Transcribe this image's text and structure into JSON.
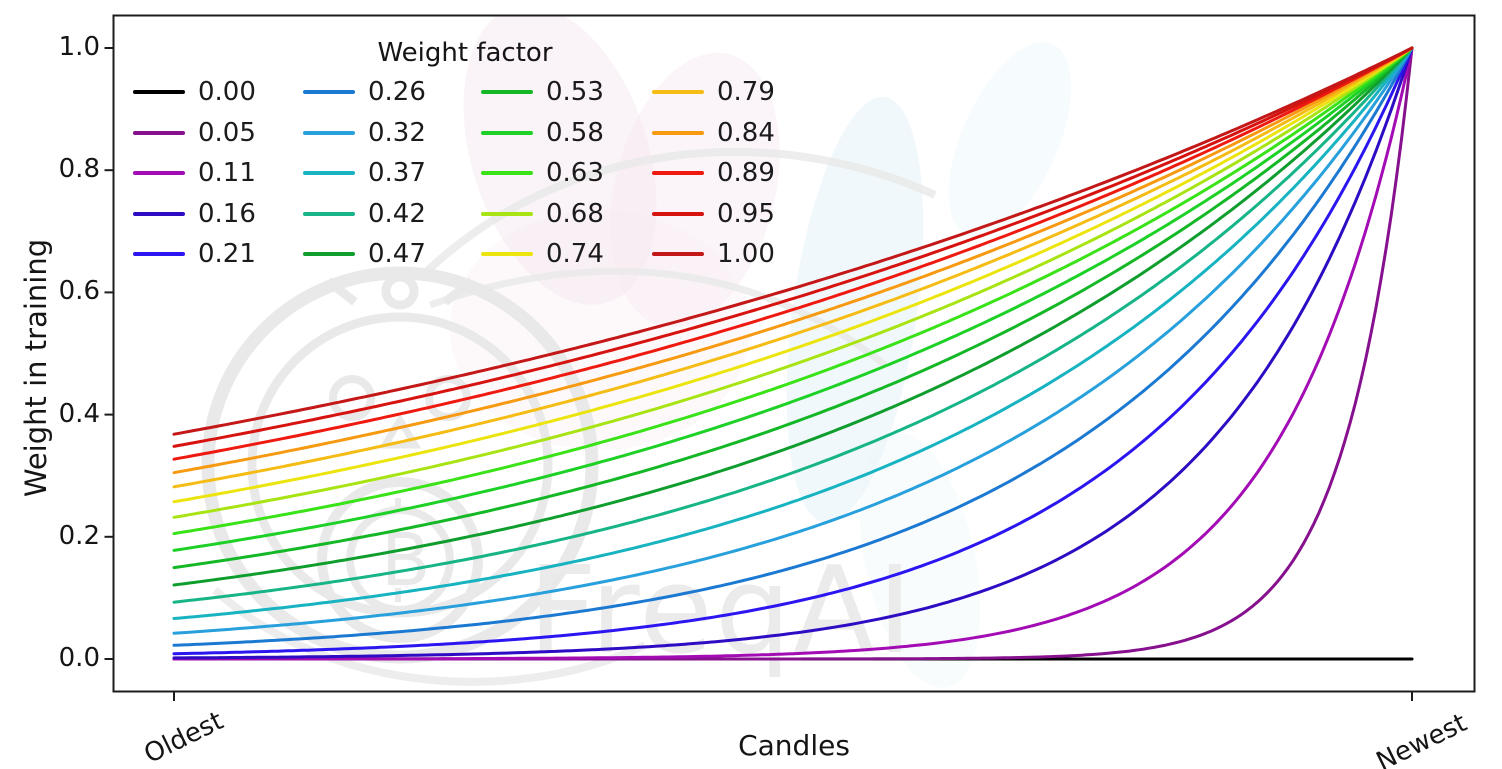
{
  "watermark": {
    "text": "FreqAI",
    "logo": "freqtrade-bot-stopwatch-emblem",
    "bitcoin_glyph": "B"
  },
  "chart_data": {
    "type": "line",
    "title": "",
    "xlabel": "Candles",
    "ylabel": "Weight in training",
    "x_tick_labels": [
      "Oldest",
      "Newest"
    ],
    "y_ticks": [
      0.0,
      0.2,
      0.4,
      0.6,
      0.8,
      1.0
    ],
    "y_tick_labels": [
      "0.0",
      "0.2",
      "0.4",
      "0.6",
      "0.8",
      "1.0"
    ],
    "xlim_normalized": [
      0,
      1
    ],
    "ylim": [
      -0.05,
      1.05
    ],
    "grid": false,
    "legend": {
      "title": "Weight factor",
      "ncol": 4,
      "nrow": 5,
      "position": "upper left",
      "frame": false
    },
    "formula": "weight(x) = exp((x - 1) / factor) for factor > 0, with x normalized from 0 (oldest candle) to 1 (newest candle); factor = 0 gives weight = 0 everywhere",
    "style": {
      "spine_color": "#1c1c1c",
      "text_color": "#151515",
      "line_width": 3
    },
    "series": [
      {
        "label": "0.00",
        "factor": 0.0,
        "color": "#000000"
      },
      {
        "label": "0.05",
        "factor": 0.0526,
        "color": "#86108e"
      },
      {
        "label": "0.11",
        "factor": 0.1053,
        "color": "#a30cb4"
      },
      {
        "label": "0.16",
        "factor": 0.1579,
        "color": "#2d0cc3"
      },
      {
        "label": "0.21",
        "factor": 0.2105,
        "color": "#2b15f0"
      },
      {
        "label": "0.26",
        "factor": 0.2632,
        "color": "#1b79d2"
      },
      {
        "label": "0.32",
        "factor": 0.3158,
        "color": "#28a0dc"
      },
      {
        "label": "0.37",
        "factor": 0.3684,
        "color": "#17b3c1"
      },
      {
        "label": "0.42",
        "factor": 0.4211,
        "color": "#16b487"
      },
      {
        "label": "0.47",
        "factor": 0.4737,
        "color": "#0f9e2e"
      },
      {
        "label": "0.53",
        "factor": 0.5263,
        "color": "#14b826"
      },
      {
        "label": "0.58",
        "factor": 0.5789,
        "color": "#1ed126"
      },
      {
        "label": "0.63",
        "factor": 0.6316,
        "color": "#3ae218"
      },
      {
        "label": "0.68",
        "factor": 0.6842,
        "color": "#a8e414"
      },
      {
        "label": "0.74",
        "factor": 0.7368,
        "color": "#ece40e"
      },
      {
        "label": "0.79",
        "factor": 0.7895,
        "color": "#f6bc16"
      },
      {
        "label": "0.84",
        "factor": 0.8421,
        "color": "#f79a12"
      },
      {
        "label": "0.89",
        "factor": 0.8947,
        "color": "#ee1a10"
      },
      {
        "label": "0.95",
        "factor": 0.9474,
        "color": "#d6130f"
      },
      {
        "label": "1.00",
        "factor": 1.0,
        "color": "#c31718"
      }
    ]
  }
}
